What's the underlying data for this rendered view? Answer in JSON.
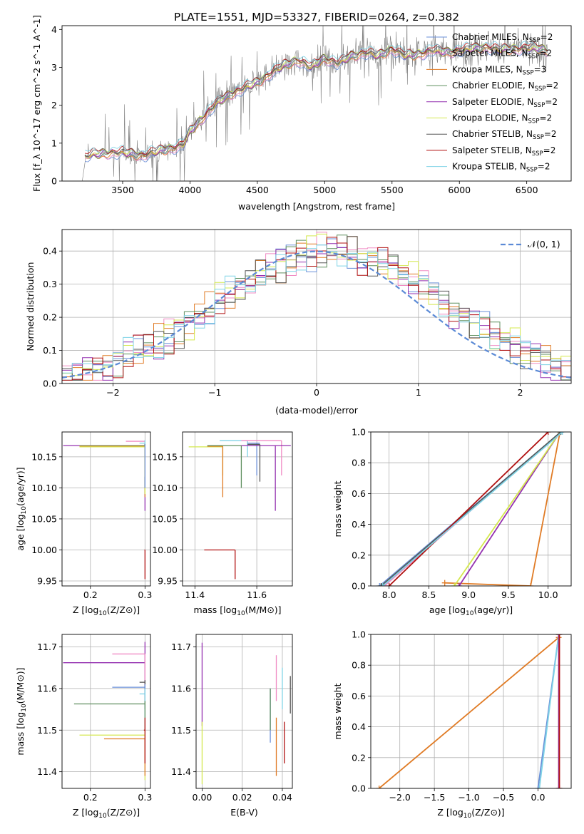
{
  "figure_title": "PLATE=1551, MJD=53327, FIBERID=0264, z=0.382",
  "colors": {
    "chabrier_miles": "#6a8fd8",
    "salpeter_miles": "#f08bc4",
    "kroupa_miles": "#e07b25",
    "chabrier_elodie": "#5f8f5f",
    "salpeter_elodie": "#9430b0",
    "kroupa_elodie": "#d4e84e",
    "chabrier_stelib": "#555555",
    "salpeter_stelib": "#b01010",
    "kroupa_stelib": "#7fd3e6",
    "data": "#808080",
    "normal": "#5b8ad6"
  },
  "chart_data": [
    {
      "id": "spectrum",
      "type": "line",
      "xlabel": "wavelength [Angstrom, rest frame]",
      "ylabel": "Flux [f_λ 10^-17 erg cm^-2 s^-1 A^-1]",
      "xlim": [
        3050,
        6830
      ],
      "ylim": [
        0,
        4.1
      ],
      "xticks": [
        3500,
        4000,
        4500,
        5000,
        5500,
        6000,
        6500
      ],
      "yticks": [
        0,
        1,
        2,
        3,
        4
      ],
      "legend_position": "top-right",
      "series": [
        {
          "key": "chabrier_miles",
          "name_main": "Chabrier MILES, N",
          "name_sub": "SSP",
          "name_tail": "=2"
        },
        {
          "key": "salpeter_miles",
          "name_main": "Salpeter MILES, N",
          "name_sub": "SSP",
          "name_tail": "=2"
        },
        {
          "key": "kroupa_miles",
          "name_main": "Kroupa MILES, N",
          "name_sub": "SSP",
          "name_tail": "=3"
        },
        {
          "key": "chabrier_elodie",
          "name_main": "Chabrier ELODIE, N",
          "name_sub": "SSP",
          "name_tail": "=2"
        },
        {
          "key": "salpeter_elodie",
          "name_main": "Salpeter ELODIE, N",
          "name_sub": "SSP",
          "name_tail": "=2"
        },
        {
          "key": "kroupa_elodie",
          "name_main": "Kroupa ELODIE, N",
          "name_sub": "SSP",
          "name_tail": "=2"
        },
        {
          "key": "chabrier_stelib",
          "name_main": "Chabrier STELIB, N",
          "name_sub": "SSP",
          "name_tail": "=2"
        },
        {
          "key": "salpeter_stelib",
          "name_main": "Salpeter STELIB, N",
          "name_sub": "SSP",
          "name_tail": "=2"
        },
        {
          "key": "kroupa_stelib",
          "name_main": "Kroupa STELIB, N",
          "name_sub": "SSP",
          "name_tail": "=2"
        }
      ],
      "continuum": {
        "x": [
          3200,
          3280,
          3400,
          3500,
          3650,
          3800,
          3950,
          4000,
          4100,
          4200,
          4300,
          4400,
          4500,
          4600,
          4700,
          4800,
          4900,
          5000,
          5100,
          5200,
          5300,
          5400,
          5500,
          5600,
          5700,
          5800,
          5900,
          6000,
          6100,
          6200,
          6300,
          6400,
          6500,
          6600,
          6650
        ],
        "y": [
          0.62,
          0.7,
          0.75,
          0.75,
          0.68,
          0.82,
          0.95,
          1.3,
          1.7,
          2.05,
          2.3,
          2.45,
          2.6,
          2.85,
          3.05,
          3.2,
          3.0,
          3.25,
          3.1,
          3.3,
          3.4,
          3.3,
          3.5,
          3.3,
          3.35,
          3.45,
          3.4,
          3.45,
          3.5,
          3.55,
          3.45,
          3.5,
          3.5,
          3.5,
          3.45
        ]
      }
    },
    {
      "id": "residuals",
      "type": "step",
      "xlabel": "(data-model)/error",
      "ylabel": "Normed distribution",
      "xlim": [
        -2.5,
        2.5
      ],
      "ylim": [
        0,
        0.465
      ],
      "xticks": [
        -2,
        -1,
        0,
        1,
        2
      ],
      "yticks": [
        0.0,
        0.1,
        0.2,
        0.3,
        0.4
      ],
      "bin_width": 0.1,
      "legend_label": "𝒩(0, 1)",
      "legend_position": "top-right"
    },
    {
      "id": "age_vs_Z",
      "type": "errorbar",
      "xlabel_main": "Z [log",
      "xlabel_sub": "10",
      "xlabel_tail": "(Z/Z⊙)]",
      "ylabel_main": "age  [log",
      "ylabel_sub": "10",
      "ylabel_tail": "(age/yr)]",
      "xlim": [
        0.148,
        0.31
      ],
      "ylim": [
        9.942,
        10.19
      ],
      "xticks": [
        0.2,
        0.3
      ],
      "yticks": [
        9.95,
        10.0,
        10.05,
        10.1,
        10.15
      ],
      "points": [
        {
          "key": "salpeter_miles",
          "x": 0.3,
          "y": 10.175,
          "xerr": [
            0.265,
            0.3
          ],
          "yerr": [
            10.171,
            10.176
          ]
        },
        {
          "key": "kroupa_stelib",
          "x": 0.3,
          "y": 10.172,
          "xerr": [
            0.29,
            0.3
          ],
          "yerr": [
            10.168,
            10.177
          ]
        },
        {
          "key": "salpeter_elodie",
          "x": 0.3,
          "y": 10.168,
          "xerr": [
            0.15,
            0.3
          ],
          "yerr": [
            10.063,
            10.17
          ]
        },
        {
          "key": "chabrier_elodie",
          "x": 0.3,
          "y": 10.168,
          "xerr": [
            0.18,
            0.3
          ],
          "yerr": [
            10.09,
            10.17
          ]
        },
        {
          "key": "kroupa_miles",
          "x": 0.3,
          "y": 10.167,
          "xerr": [
            0.18,
            0.3
          ],
          "yerr": [
            10.085,
            10.168
          ]
        },
        {
          "key": "kroupa_elodie",
          "x": 0.3,
          "y": 10.166,
          "xerr": [
            0.18,
            0.3
          ],
          "yerr": [
            10.09,
            10.166
          ]
        },
        {
          "key": "chabrier_stelib",
          "x": 0.3,
          "y": 10.17,
          "xerr": [
            0.299,
            0.3
          ],
          "yerr": [
            10.1,
            10.118
          ]
        },
        {
          "key": "salpeter_stelib",
          "x": 0.3,
          "y": 10.0,
          "xerr": [
            0.299,
            0.3
          ],
          "yerr": [
            9.953,
            10.0
          ]
        },
        {
          "key": "chabrier_miles",
          "x": 0.3,
          "y": 10.168,
          "xerr": [
            0.3,
            0.3
          ],
          "yerr": [
            10.1,
            10.17
          ]
        }
      ]
    },
    {
      "id": "age_vs_mass",
      "type": "errorbar",
      "xlabel_main": "mass [log",
      "xlabel_sub": "10",
      "xlabel_tail": "(M/M⊙)]",
      "xlim": [
        11.36,
        11.715
      ],
      "ylim": [
        9.942,
        10.19
      ],
      "xticks": [
        11.4,
        11.6
      ],
      "yticks": [
        9.95,
        10.0,
        10.05,
        10.1,
        10.15
      ],
      "points": [
        {
          "key": "kroupa_stelib",
          "x": 11.57,
          "y": 10.176,
          "xerr": [
            11.48,
            11.57
          ],
          "yerr": [
            10.15,
            10.176
          ]
        },
        {
          "key": "salpeter_miles",
          "x": 11.68,
          "y": 10.176,
          "xerr": [
            11.55,
            11.68
          ],
          "yerr": [
            10.12,
            10.176
          ]
        },
        {
          "key": "kroupa_elodie",
          "x": 11.49,
          "y": 10.166,
          "xerr": [
            11.38,
            11.49
          ],
          "yerr": [
            10.12,
            10.166
          ]
        },
        {
          "key": "kroupa_miles",
          "x": 11.49,
          "y": 10.167,
          "xerr": [
            11.44,
            11.49
          ],
          "yerr": [
            10.085,
            10.167
          ]
        },
        {
          "key": "chabrier_elodie",
          "x": 11.55,
          "y": 10.168,
          "xerr": [
            11.44,
            11.55
          ],
          "yerr": [
            10.1,
            10.168
          ]
        },
        {
          "key": "chabrier_miles",
          "x": 11.6,
          "y": 10.172,
          "xerr": [
            11.57,
            11.61
          ],
          "yerr": [
            10.12,
            10.172
          ]
        },
        {
          "key": "salpeter_elodie",
          "x": 11.66,
          "y": 10.168,
          "xerr": [
            11.55,
            11.71
          ],
          "yerr": [
            10.063,
            10.168
          ]
        },
        {
          "key": "chabrier_stelib",
          "x": 11.61,
          "y": 10.17,
          "xerr": [
            11.57,
            11.61
          ],
          "yerr": [
            10.11,
            10.17
          ]
        },
        {
          "key": "salpeter_stelib",
          "x": 11.53,
          "y": 10.0,
          "xerr": [
            11.43,
            11.53
          ],
          "yerr": [
            9.953,
            10.0
          ]
        }
      ]
    },
    {
      "id": "cum_age",
      "type": "line",
      "xlabel_main": "age  [log",
      "xlabel_sub": "10",
      "xlabel_tail": "(age/yr)]",
      "ylabel": "mass weight",
      "xlim": [
        7.77,
        10.29
      ],
      "ylim": [
        0,
        1
      ],
      "xticks": [
        8.0,
        8.5,
        9.0,
        9.5,
        10.0
      ],
      "yticks": [
        0.0,
        0.2,
        0.4,
        0.6,
        0.8,
        1.0
      ],
      "series": [
        {
          "key": "chabrier_miles",
          "x": [
            7.88,
            10.16
          ],
          "y": [
            0.0,
            1.0
          ]
        },
        {
          "key": "salpeter_miles",
          "x": [
            7.94,
            10.16
          ],
          "y": [
            0.0,
            1.0
          ]
        },
        {
          "key": "kroupa_miles",
          "x": [
            8.7,
            9.78,
            10.15
          ],
          "y": [
            0.02,
            0.0,
            1.0
          ]
        },
        {
          "key": "chabrier_elodie",
          "x": [
            7.9,
            10.16
          ],
          "y": [
            0.0,
            1.0
          ]
        },
        {
          "key": "salpeter_elodie",
          "x": [
            8.88,
            10.15
          ],
          "y": [
            0.0,
            1.0
          ]
        },
        {
          "key": "kroupa_elodie",
          "x": [
            8.82,
            10.15
          ],
          "y": [
            0.0,
            1.0
          ]
        },
        {
          "key": "chabrier_stelib",
          "x": [
            7.9,
            10.16
          ],
          "y": [
            0.0,
            1.0
          ]
        },
        {
          "key": "salpeter_stelib",
          "x": [
            8.0,
            10.0
          ],
          "y": [
            0.0,
            1.0
          ]
        },
        {
          "key": "kroupa_stelib",
          "x": [
            7.92,
            10.18
          ],
          "y": [
            0.0,
            1.0
          ]
        }
      ]
    },
    {
      "id": "mass_vs_Z",
      "type": "errorbar",
      "xlabel_main": "Z [log",
      "xlabel_sub": "10",
      "xlabel_tail": "(Z/Z⊙)]",
      "ylabel_main": "mass [log",
      "ylabel_sub": "10",
      "ylabel_tail": "(M/M⊙)]",
      "xlim": [
        0.148,
        0.31
      ],
      "ylim": [
        11.36,
        11.73
      ],
      "xticks": [
        0.2,
        0.3
      ],
      "yticks": [
        11.4,
        11.5,
        11.6,
        11.7
      ],
      "points": [
        {
          "key": "salpeter_elodie",
          "x": 0.3,
          "y": 11.662,
          "xerr": [
            0.15,
            0.3
          ],
          "yerr": [
            11.6,
            11.712
          ]
        },
        {
          "key": "salpeter_miles",
          "x": 0.3,
          "y": 11.683,
          "xerr": [
            0.24,
            0.3
          ],
          "yerr": [
            11.62,
            11.683
          ]
        },
        {
          "key": "chabrier_stelib",
          "x": 0.3,
          "y": 11.615,
          "xerr": [
            0.29,
            0.3
          ],
          "yerr": [
            11.55,
            11.62
          ]
        },
        {
          "key": "chabrier_miles",
          "x": 0.3,
          "y": 11.603,
          "xerr": [
            0.24,
            0.3
          ],
          "yerr": [
            11.58,
            11.61
          ]
        },
        {
          "key": "kroupa_stelib",
          "x": 0.3,
          "y": 11.587,
          "xerr": [
            0.29,
            0.3
          ],
          "yerr": [
            11.53,
            11.6
          ]
        },
        {
          "key": "chabrier_elodie",
          "x": 0.3,
          "y": 11.563,
          "xerr": [
            0.17,
            0.3
          ],
          "yerr": [
            11.5,
            11.57
          ]
        },
        {
          "key": "kroupa_elodie",
          "x": 0.3,
          "y": 11.488,
          "xerr": [
            0.18,
            0.3
          ],
          "yerr": [
            11.38,
            11.5
          ]
        },
        {
          "key": "kroupa_miles",
          "x": 0.3,
          "y": 11.479,
          "xerr": [
            0.225,
            0.3
          ],
          "yerr": [
            11.39,
            11.48
          ]
        },
        {
          "key": "salpeter_stelib",
          "x": 0.3,
          "y": 11.5,
          "xerr": [
            0.298,
            0.3
          ],
          "yerr": [
            11.42,
            11.53
          ]
        }
      ]
    },
    {
      "id": "mass_vs_ebv",
      "type": "errorbar",
      "xlabel": "E(B-V)",
      "xlim": [
        -0.003,
        0.045
      ],
      "ylim": [
        11.36,
        11.73
      ],
      "xticks": [
        0.0,
        0.02,
        0.04
      ],
      "yticks": [
        11.4,
        11.5,
        11.6,
        11.7
      ],
      "points": [
        {
          "key": "salpeter_elodie",
          "x": 0.0,
          "y": 11.66,
          "yerr": [
            11.51,
            11.71
          ]
        },
        {
          "key": "kroupa_elodie",
          "x": 0.0,
          "y": 11.45,
          "yerr": [
            11.37,
            11.52
          ]
        },
        {
          "key": "chabrier_miles",
          "x": 0.034,
          "y": 11.55,
          "yerr": [
            11.47,
            11.6
          ]
        },
        {
          "key": "kroupa_miles",
          "x": 0.037,
          "y": 11.45,
          "yerr": [
            11.39,
            11.53
          ]
        },
        {
          "key": "salpeter_miles",
          "x": 0.037,
          "y": 11.63,
          "yerr": [
            11.57,
            11.68
          ]
        },
        {
          "key": "kroupa_stelib",
          "x": 0.04,
          "y": 11.62,
          "yerr": [
            11.55,
            11.65
          ]
        },
        {
          "key": "salpeter_stelib",
          "x": 0.041,
          "y": 11.5,
          "yerr": [
            11.42,
            11.52
          ]
        },
        {
          "key": "chabrier_stelib",
          "x": 0.044,
          "y": 11.59,
          "yerr": [
            11.54,
            11.63
          ]
        },
        {
          "key": "chabrier_elodie",
          "x": 0.034,
          "y": 11.56,
          "yerr": [
            11.5,
            11.6
          ]
        }
      ]
    },
    {
      "id": "cum_Z",
      "type": "line",
      "xlabel_main": "Z [log",
      "xlabel_sub": "10",
      "xlabel_tail": "(Z/Z⊙)]",
      "ylabel": "mass weight",
      "xlim": [
        -2.42,
        0.48
      ],
      "ylim": [
        0,
        1
      ],
      "xticks": [
        -2.0,
        -1.5,
        -1.0,
        -0.5,
        0.0
      ],
      "yticks": [
        0.0,
        0.2,
        0.4,
        0.6,
        0.8,
        1.0
      ],
      "series": [
        {
          "key": "kroupa_miles",
          "x": [
            -2.3,
            0.3,
            0.3
          ],
          "y": [
            0.0,
            0.98,
            1.0
          ]
        },
        {
          "key": "chabrier_miles",
          "x": [
            0.0,
            0.3
          ],
          "y": [
            0.0,
            1.0
          ]
        },
        {
          "key": "kroupa_stelib",
          "x": [
            0.02,
            0.3
          ],
          "y": [
            0.0,
            1.0
          ]
        },
        {
          "key": "kroupa_elodie",
          "x": [
            0.3,
            0.3
          ],
          "y": [
            0.0,
            1.0
          ]
        },
        {
          "key": "salpeter_elodie",
          "x": [
            0.3,
            0.3
          ],
          "y": [
            0.0,
            1.0
          ]
        },
        {
          "key": "salpeter_stelib",
          "x": [
            0.31,
            0.31
          ],
          "y": [
            0.0,
            1.0
          ]
        }
      ]
    }
  ]
}
